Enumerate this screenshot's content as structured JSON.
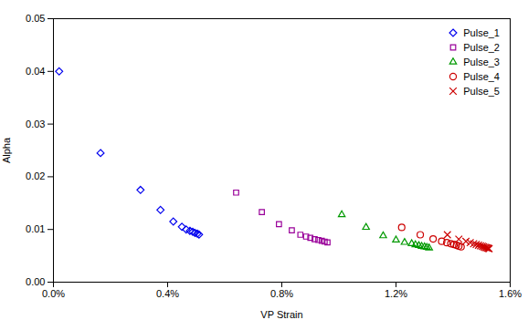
{
  "chart_data": {
    "type": "scatter",
    "xlabel": "VP Strain",
    "ylabel": "Alpha",
    "xlim": [
      0,
      0.016
    ],
    "ylim": [
      0,
      0.05
    ],
    "xticks": [
      {
        "value": 0.0,
        "label": "0.0%"
      },
      {
        "value": 0.004,
        "label": "0.4%"
      },
      {
        "value": 0.008,
        "label": "0.8%"
      },
      {
        "value": 0.012,
        "label": "1.2%"
      },
      {
        "value": 0.016,
        "label": "1.6%"
      }
    ],
    "yticks": [
      {
        "value": 0.0,
        "label": "0.00"
      },
      0.01,
      0.02,
      0.03,
      0.04,
      0.05
    ],
    "grid": false,
    "legend": "upper right",
    "series": [
      {
        "name": "Pulse_1",
        "color": "#0000EE",
        "marker": "diamond",
        "x": [
          0.0002,
          0.00165,
          0.00305,
          0.00375,
          0.0042,
          0.0045,
          0.00465,
          0.00478,
          0.00488,
          0.00496,
          0.00504,
          0.0051
        ],
        "values": [
          0.04,
          0.0245,
          0.0175,
          0.0137,
          0.0115,
          0.0105,
          0.01,
          0.00975,
          0.00955,
          0.00935,
          0.0092,
          0.00905
        ]
      },
      {
        "name": "Pulse_2",
        "color": "#990099",
        "marker": "square",
        "x": [
          0.0064,
          0.0073,
          0.0079,
          0.00835,
          0.00865,
          0.00885,
          0.009,
          0.00915,
          0.00928,
          0.0094,
          0.0095,
          0.0096
        ],
        "values": [
          0.017,
          0.0133,
          0.011,
          0.00985,
          0.009,
          0.00865,
          0.0084,
          0.00815,
          0.008,
          0.00785,
          0.0077,
          0.00755
        ]
      },
      {
        "name": "Pulse_3",
        "color": "#009900",
        "marker": "triangle",
        "x": [
          0.0101,
          0.01095,
          0.01155,
          0.012,
          0.0123,
          0.01255,
          0.01268,
          0.0128,
          0.0129,
          0.013,
          0.01308,
          0.01316
        ],
        "values": [
          0.0128,
          0.0104,
          0.0088,
          0.008,
          0.00755,
          0.0073,
          0.0071,
          0.00695,
          0.0068,
          0.0067,
          0.0066,
          0.0065
        ]
      },
      {
        "name": "Pulse_4",
        "color": "#CC0000",
        "marker": "circle",
        "x": [
          0.0122,
          0.01285,
          0.0133,
          0.0136,
          0.01378,
          0.01392,
          0.01403,
          0.01412,
          0.0142,
          0.01428
        ],
        "values": [
          0.0104,
          0.009,
          0.0082,
          0.00775,
          0.0075,
          0.0073,
          0.00715,
          0.007,
          0.00685,
          0.0067
        ]
      },
      {
        "name": "Pulse_5",
        "color": "#CC0000",
        "marker": "x",
        "x": [
          0.0138,
          0.0142,
          0.01445,
          0.0146,
          0.01472,
          0.01481,
          0.01489,
          0.01496,
          0.01502,
          0.01507,
          0.01512,
          0.01516,
          0.0152,
          0.01523,
          0.01526
        ],
        "values": [
          0.009,
          0.00815,
          0.00775,
          0.0075,
          0.0073,
          0.00715,
          0.007,
          0.0069,
          0.0068,
          0.0067,
          0.0066,
          0.00655,
          0.00648,
          0.00642,
          0.00636
        ]
      }
    ]
  }
}
